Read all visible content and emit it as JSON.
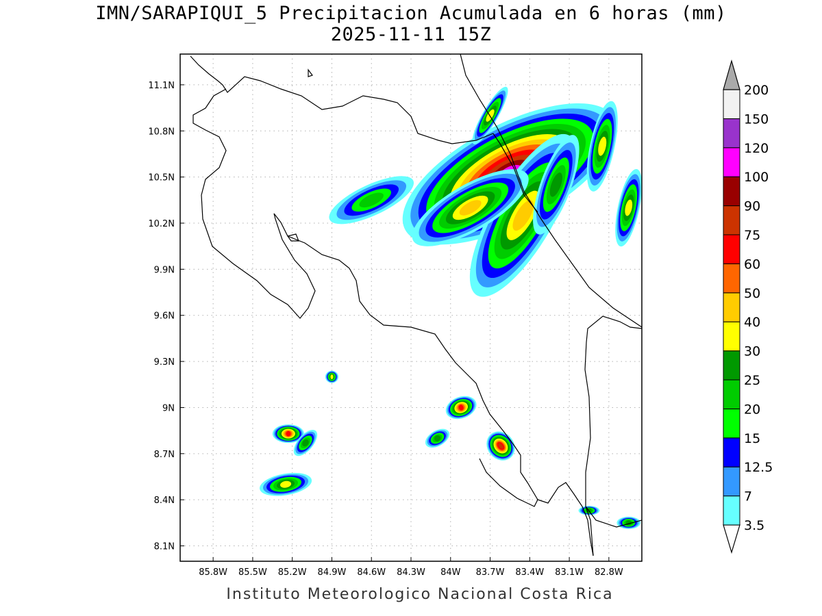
{
  "title": {
    "line1": "IMN/SARAPIQUI_5 Precipitacion Acumulada en 6 horas (mm)",
    "line2": "2025-11-11 15Z"
  },
  "credit": "Instituto Meteorologico Nacional Costa Rica",
  "map": {
    "lon_range": [
      -86.05,
      -82.55
    ],
    "lat_range": [
      8.0,
      11.3
    ],
    "grid": true,
    "lon_ticks": [
      {
        "value": -85.8,
        "label": "85.8W"
      },
      {
        "value": -85.5,
        "label": "85.5W"
      },
      {
        "value": -85.2,
        "label": "85.2W"
      },
      {
        "value": -84.9,
        "label": "84.9W"
      },
      {
        "value": -84.6,
        "label": "84.6W"
      },
      {
        "value": -84.3,
        "label": "84.3W"
      },
      {
        "value": -84.0,
        "label": "84W"
      },
      {
        "value": -83.7,
        "label": "83.7W"
      },
      {
        "value": -83.4,
        "label": "83.4W"
      },
      {
        "value": -83.1,
        "label": "83.1W"
      },
      {
        "value": -82.8,
        "label": "82.8W"
      }
    ],
    "lat_ticks": [
      {
        "value": 11.1,
        "label": "11.1N"
      },
      {
        "value": 10.8,
        "label": "10.8N"
      },
      {
        "value": 10.5,
        "label": "10.5N"
      },
      {
        "value": 10.2,
        "label": "10.2N"
      },
      {
        "value": 9.9,
        "label": "9.9N"
      },
      {
        "value": 9.6,
        "label": "9.6N"
      },
      {
        "value": 9.3,
        "label": "9.3N"
      },
      {
        "value": 9.0,
        "label": "9N"
      },
      {
        "value": 8.7,
        "label": "8.7N"
      },
      {
        "value": 8.4,
        "label": "8.4N"
      },
      {
        "value": 8.1,
        "label": "8.1N"
      }
    ]
  },
  "colorbar": {
    "levels": [
      {
        "label": "3.5",
        "color": "#66ffff"
      },
      {
        "label": "7",
        "color": "#3399ff"
      },
      {
        "label": "12.5",
        "color": "#0000ff"
      },
      {
        "label": "15",
        "color": "#00ff00"
      },
      {
        "label": "20",
        "color": "#00cc00"
      },
      {
        "label": "25",
        "color": "#009900"
      },
      {
        "label": "30",
        "color": "#ffff00"
      },
      {
        "label": "40",
        "color": "#ffcc00"
      },
      {
        "label": "50",
        "color": "#ff6600"
      },
      {
        "label": "60",
        "color": "#ff0000"
      },
      {
        "label": "75",
        "color": "#cc3300"
      },
      {
        "label": "90",
        "color": "#990000"
      },
      {
        "label": "100",
        "color": "#ff00ff"
      },
      {
        "label": "120",
        "color": "#9933cc"
      },
      {
        "label": "150",
        "color": "#f2f2f2"
      },
      {
        "label": "200",
        "color": "#aaaaaa"
      }
    ]
  },
  "rain_cells": [
    {
      "lon": -83.55,
      "lat": 10.52,
      "rx": 0.9,
      "ry": 0.32,
      "rot": -28,
      "level": 12
    },
    {
      "lon": -83.45,
      "lat": 10.25,
      "rx": 0.7,
      "ry": 0.2,
      "rot": -60,
      "level": 7
    },
    {
      "lon": -83.85,
      "lat": 10.3,
      "rx": 0.5,
      "ry": 0.15,
      "rot": -30,
      "level": 7
    },
    {
      "lon": -82.85,
      "lat": 10.7,
      "rx": 0.35,
      "ry": 0.08,
      "rot": -78,
      "level": 6
    },
    {
      "lon": -82.65,
      "lat": 10.3,
      "rx": 0.3,
      "ry": 0.07,
      "rot": -78,
      "level": 6
    },
    {
      "lon": -83.7,
      "lat": 10.9,
      "rx": 0.25,
      "ry": 0.05,
      "rot": -60,
      "level": 6
    },
    {
      "lon": -84.6,
      "lat": 10.35,
      "rx": 0.35,
      "ry": 0.1,
      "rot": -25,
      "level": 4
    },
    {
      "lon": -83.2,
      "lat": 10.45,
      "rx": 0.4,
      "ry": 0.1,
      "rot": -70,
      "level": 5
    },
    {
      "lon": -85.23,
      "lat": 8.83,
      "rx": 0.12,
      "ry": 0.06,
      "rot": 0,
      "level": 9
    },
    {
      "lon": -85.1,
      "lat": 8.77,
      "rx": 0.12,
      "ry": 0.05,
      "rot": -50,
      "level": 5
    },
    {
      "lon": -85.25,
      "lat": 8.5,
      "rx": 0.2,
      "ry": 0.07,
      "rot": -10,
      "level": 6
    },
    {
      "lon": -84.9,
      "lat": 9.2,
      "rx": 0.05,
      "ry": 0.04,
      "rot": 0,
      "level": 6
    },
    {
      "lon": -83.92,
      "lat": 9.0,
      "rx": 0.12,
      "ry": 0.07,
      "rot": -20,
      "level": 9
    },
    {
      "lon": -84.1,
      "lat": 8.8,
      "rx": 0.1,
      "ry": 0.05,
      "rot": -30,
      "level": 5
    },
    {
      "lon": -83.62,
      "lat": 8.75,
      "rx": 0.1,
      "ry": 0.1,
      "rot": -40,
      "level": 10
    },
    {
      "lon": -82.95,
      "lat": 8.33,
      "rx": 0.08,
      "ry": 0.03,
      "rot": 0,
      "level": 5
    },
    {
      "lon": -82.65,
      "lat": 8.25,
      "rx": 0.09,
      "ry": 0.04,
      "rot": 0,
      "level": 5
    }
  ]
}
